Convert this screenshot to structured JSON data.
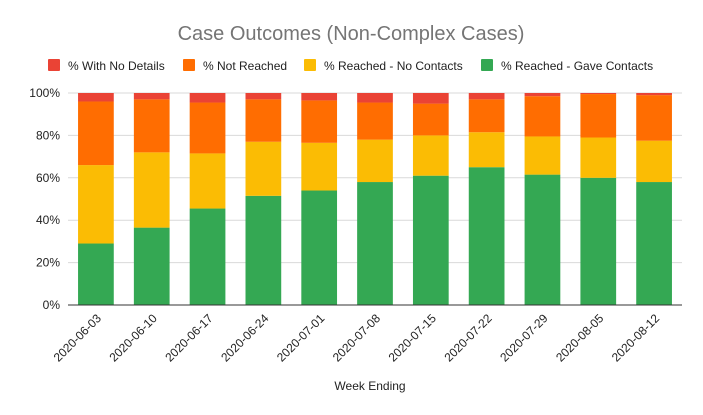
{
  "chart_data": {
    "type": "bar",
    "stacked": true,
    "normalized": true,
    "title": "Case Outcomes (Non-Complex Cases)",
    "xlabel": "Week Ending",
    "ylabel": "",
    "ylim": [
      0,
      100
    ],
    "yticks": [
      0,
      20,
      40,
      60,
      80,
      100
    ],
    "ytick_labels": [
      "0%",
      "20%",
      "40%",
      "60%",
      "80%",
      "100%"
    ],
    "grid": true,
    "legend_position": "top",
    "categories": [
      "2020-06-03",
      "2020-06-10",
      "2020-06-17",
      "2020-06-24",
      "2020-07-01",
      "2020-07-08",
      "2020-07-15",
      "2020-07-22",
      "2020-07-29",
      "2020-08-05",
      "2020-08-12"
    ],
    "legend_order": [
      "% With No Details",
      "% Not Reached",
      "% Reached - No Contacts",
      "% Reached - Gave Contacts"
    ],
    "series": [
      {
        "name": "% Reached - Gave Contacts",
        "color": "#34a853",
        "values": [
          29,
          36.5,
          45.5,
          51.5,
          54,
          58,
          61,
          65,
          61.5,
          60,
          58
        ]
      },
      {
        "name": "% Reached - No Contacts",
        "color": "#fbbc04",
        "values": [
          37,
          35.5,
          26,
          25.5,
          22.5,
          20,
          19,
          16.5,
          18,
          19,
          19.5
        ]
      },
      {
        "name": "% Not Reached",
        "color": "#ff6d01",
        "values": [
          30,
          25,
          24,
          20,
          20,
          17.5,
          15,
          15.5,
          19,
          20.5,
          21.5
        ]
      },
      {
        "name": "% With No Details",
        "color": "#ea4335",
        "values": [
          4,
          3,
          4.5,
          3,
          3.5,
          4.5,
          5,
          3,
          1.5,
          0.5,
          1
        ]
      }
    ]
  }
}
